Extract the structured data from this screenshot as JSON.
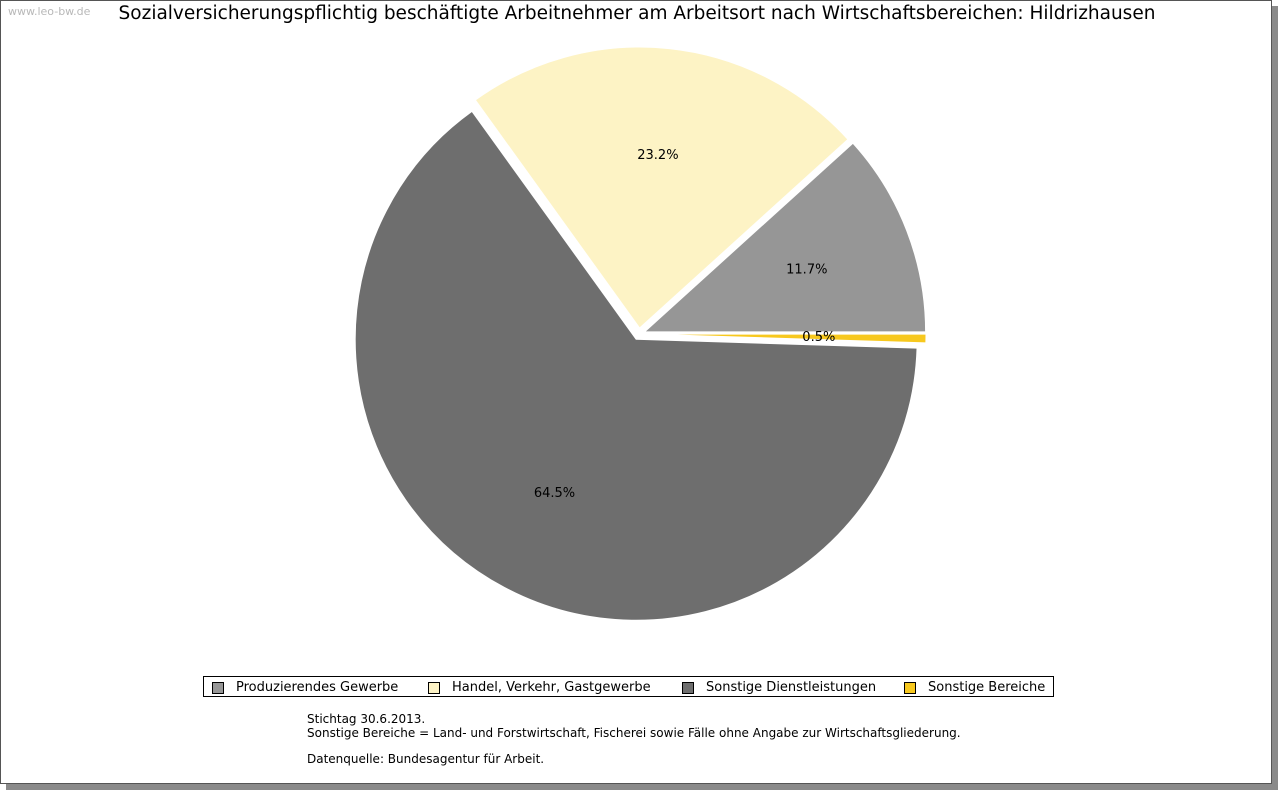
{
  "watermark": "www.leo-bw.de",
  "chart_data": {
    "type": "pie",
    "title": "Sozialversicherungspflichtig beschäftigte Arbeitnehmer am Arbeitsort nach Wirtschaftsbereichen: Hildrizhausen",
    "slices": [
      {
        "name": "Produzierendes Gewerbe",
        "value": 11.7,
        "label": "11.7%",
        "color": "#969696"
      },
      {
        "name": "Handel, Verkehr, Gastgewerbe",
        "value": 23.2,
        "label": "23.2%",
        "color": "#fdf3c5"
      },
      {
        "name": "Sonstige Dienstleistungen",
        "value": 64.5,
        "label": "64.5%",
        "color": "#6e6e6e"
      },
      {
        "name": "Sonstige Bereiche",
        "value": 0.5,
        "label": "0.5%",
        "color": "#f7c81e"
      }
    ],
    "legend_position": "bottom"
  },
  "notes": {
    "line1": "Stichtag 30.6.2013.",
    "line2": "Sonstige Bereiche = Land- und Forstwirtschaft, Fischerei sowie Fälle ohne Angabe zur Wirtschaftsgliederung.",
    "line3": "Datenquelle: Bundesagentur für Arbeit."
  }
}
